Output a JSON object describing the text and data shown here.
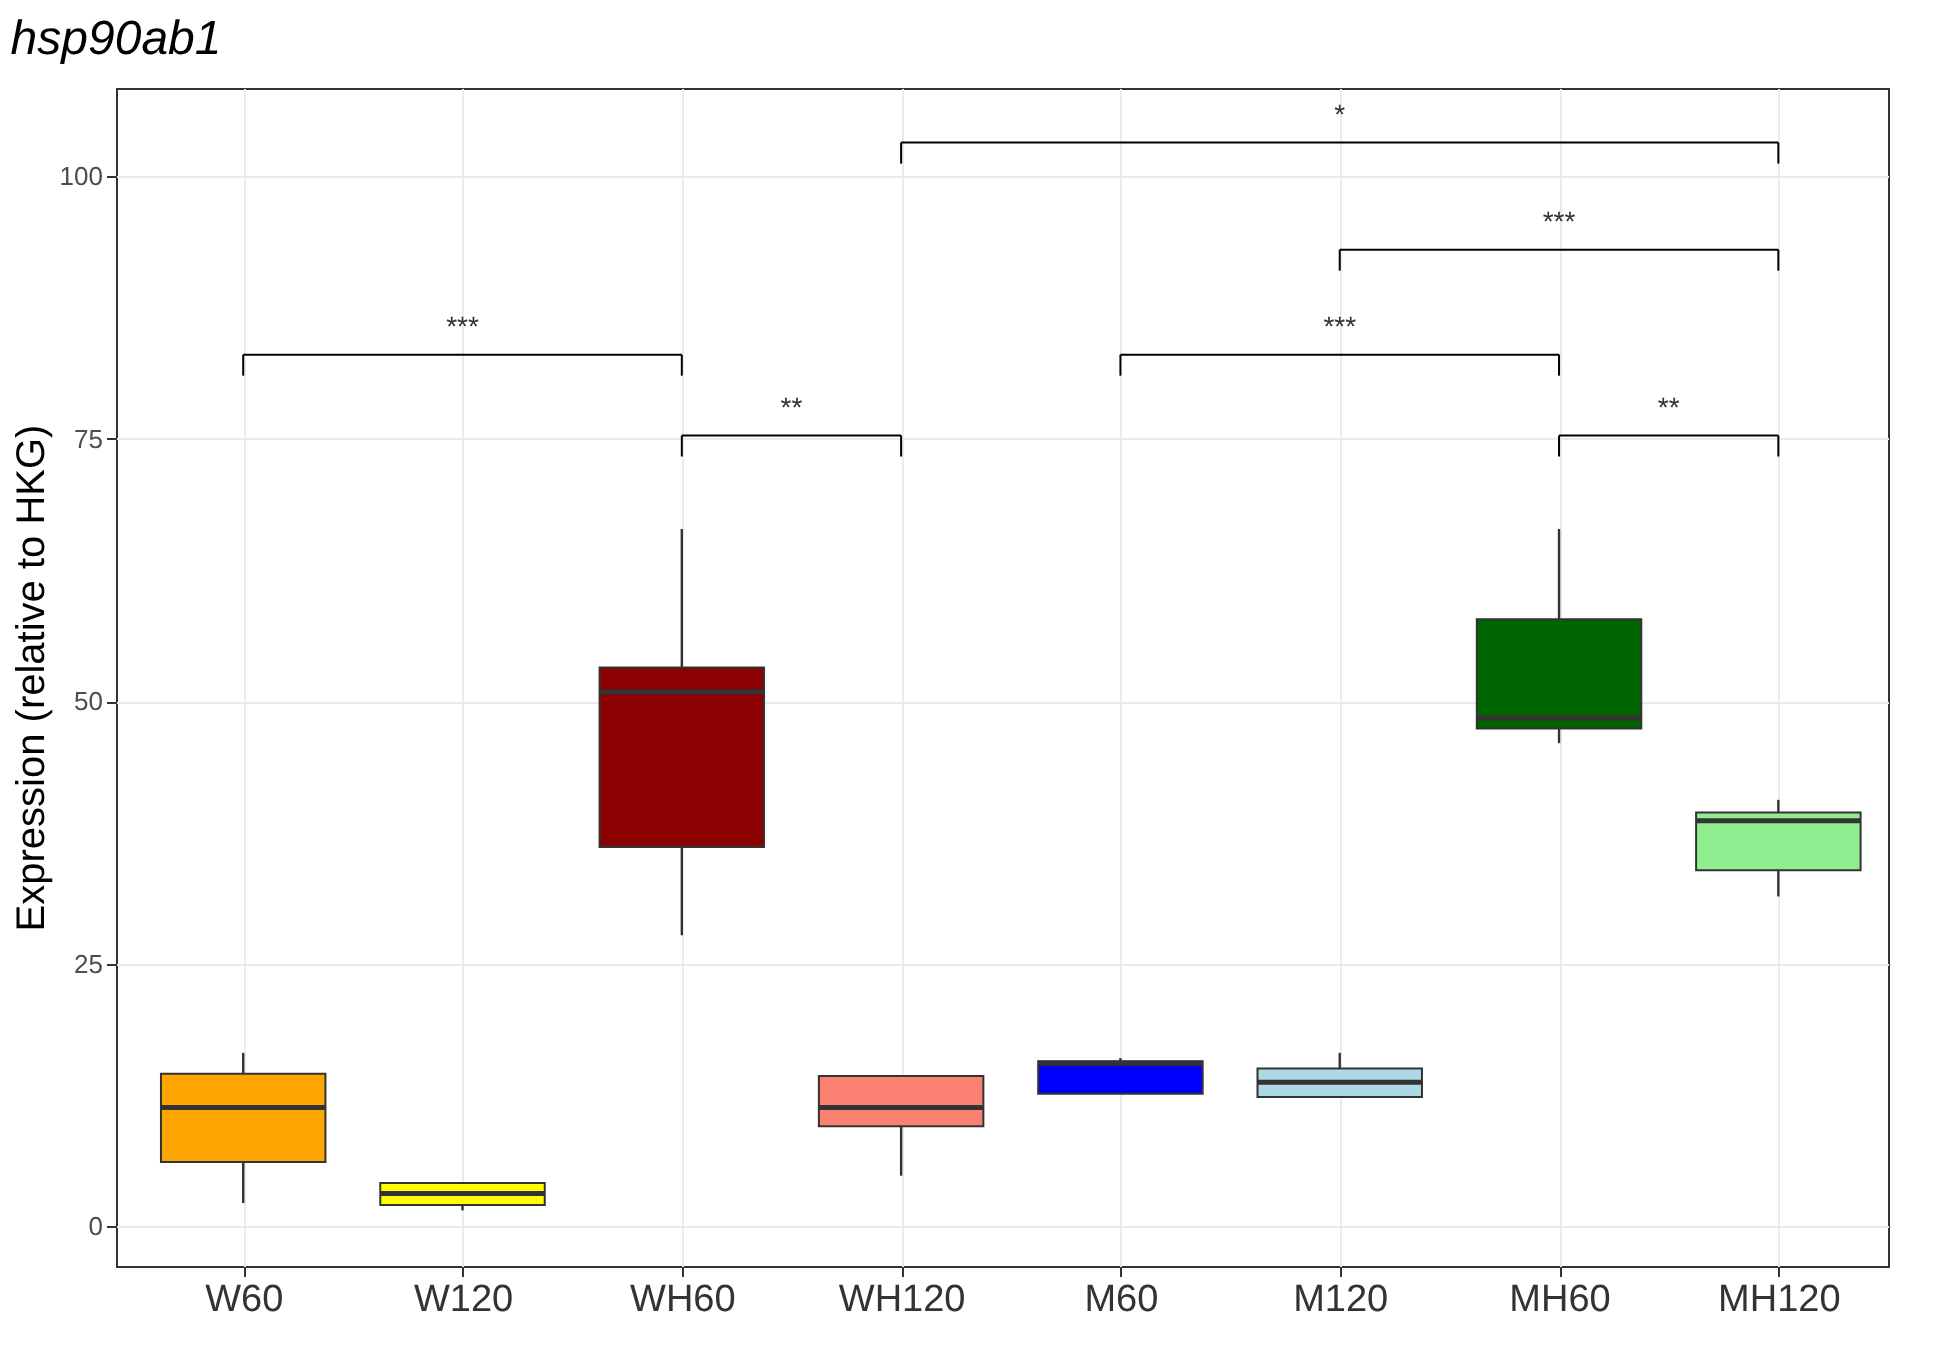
{
  "chart_data": {
    "type": "box",
    "title": "hsp90ab1",
    "ylabel": "Expression (relative to HKG)",
    "categories": [
      "W60",
      "W120",
      "WH60",
      "WH120",
      "M60",
      "M120",
      "MH60",
      "MH120"
    ],
    "boxes": [
      {
        "low": 2.2,
        "q1": 6.1,
        "median": 11.3,
        "q3": 14.5,
        "high": 16.5
      },
      {
        "low": 1.5,
        "q1": 2.0,
        "median": 3.1,
        "q3": 4.1,
        "high": 4.1
      },
      {
        "low": 27.7,
        "q1": 36.1,
        "median": 50.9,
        "q3": 53.2,
        "high": 66.4
      },
      {
        "low": 4.8,
        "q1": 9.5,
        "median": 11.3,
        "q3": 14.3,
        "high": 14.3
      },
      {
        "low": 12.6,
        "q1": 12.6,
        "median": 15.5,
        "q3": 15.7,
        "high": 16.0
      },
      {
        "low": 12.3,
        "q1": 12.3,
        "median": 13.7,
        "q3": 15.0,
        "high": 16.5
      },
      {
        "low": 46.0,
        "q1": 47.4,
        "median": 48.4,
        "q3": 57.8,
        "high": 66.4
      },
      {
        "low": 31.4,
        "q1": 33.9,
        "median": 38.6,
        "q3": 39.4,
        "high": 40.6
      }
    ],
    "colors": [
      "#ffa500",
      "#ffff00",
      "#8b0000",
      "#fa8072",
      "#0000ff",
      "#add8e6",
      "#006400",
      "#90ee90"
    ],
    "ylim": [
      -3.8,
      108.4
    ],
    "yticks": [
      0,
      25,
      50,
      75,
      100
    ],
    "grid": true,
    "legend": false,
    "annotations": [
      "*",
      "***",
      "***",
      "**",
      "***",
      "**"
    ]
  }
}
